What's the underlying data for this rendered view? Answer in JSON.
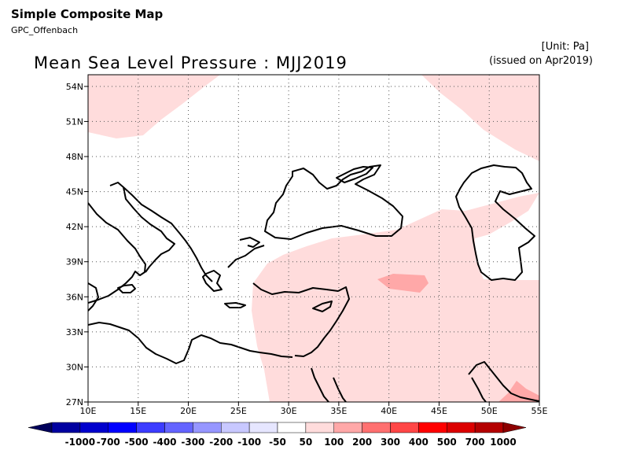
{
  "header": {
    "product": "Simple Composite Map",
    "source": "GPC_Offenbach",
    "unit": "[Unit: Pa]",
    "issued": "(issued on Apr2019)"
  },
  "map": {
    "title": "Mean Sea Level Pressure : MJJ2019",
    "lon_range": [
      10,
      55
    ],
    "lat_range": [
      27,
      55
    ],
    "gridlines": "dotted",
    "x_ticks": [
      "10E",
      "15E",
      "20E",
      "25E",
      "30E",
      "35E",
      "40E",
      "45E",
      "50E",
      "55E"
    ],
    "y_ticks": [
      "27N",
      "30N",
      "33N",
      "36N",
      "39N",
      "42N",
      "45N",
      "48N",
      "51N",
      "54N"
    ],
    "shaded_regions": [
      {
        "category": "50 to 100 Pa",
        "color": "#ffdcdc",
        "area": "northwest corner near 50-55N, 10-20E"
      },
      {
        "category": "50 to 100 Pa",
        "color": "#ffdcdc",
        "area": "northeast corner near 47-55N, 43-55E"
      },
      {
        "category": "50 to 100 Pa",
        "color": "#ffdcdc",
        "area": "Anatolia, Middle East and Caspian region, 27-43N, 27-55E"
      },
      {
        "category": "100 to 200 Pa",
        "color": "#ffa8a8",
        "area": "near 36-37N, 39-44E"
      },
      {
        "category": "100 to 200 Pa",
        "color": "#ffa8a8",
        "area": "near 27-29N, 50-55E"
      }
    ]
  },
  "colorbar": {
    "labels": [
      "-1000",
      "-700",
      "-500",
      "-400",
      "-300",
      "-200",
      "-100",
      "-50",
      "50",
      "100",
      "200",
      "300",
      "400",
      "500",
      "700",
      "1000"
    ],
    "colors": [
      "#0000a0",
      "#0000cd",
      "#0000ff",
      "#3c3cff",
      "#6464ff",
      "#9696ff",
      "#c8c8ff",
      "#e6e6ff",
      "#ffffff",
      "#ffdcdc",
      "#ffa8a8",
      "#ff7070",
      "#ff4646",
      "#ff0000",
      "#dc0000",
      "#b40000"
    ],
    "end_colors": {
      "low": "#00005a",
      "high": "#8c0000"
    }
  }
}
